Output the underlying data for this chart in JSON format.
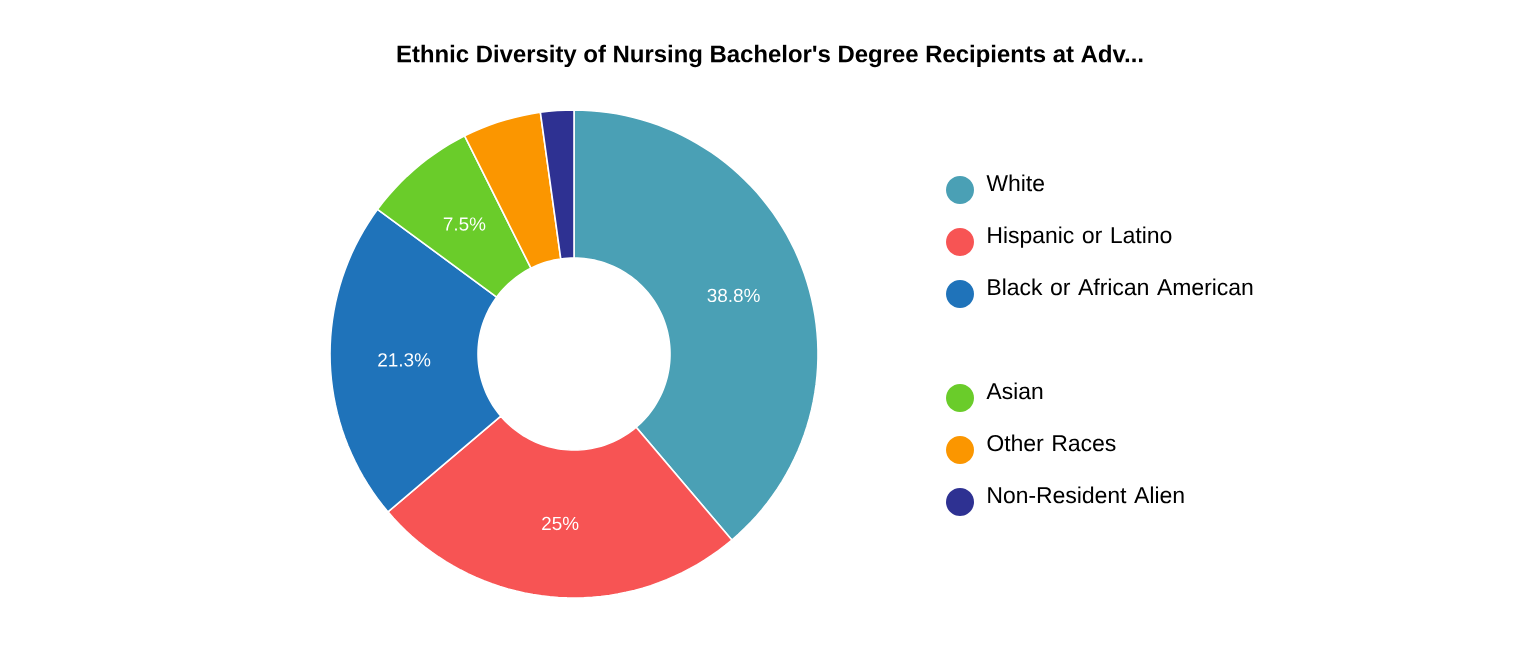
{
  "chart_data": {
    "type": "donut",
    "title": "Ethnic Diversity of Nursing Bachelor's Degree Recipients at Adv...",
    "categories": [
      "White",
      "Hispanic or Latino",
      "Black or African American",
      "Asian",
      "Other Races",
      "Non-Resident Alien"
    ],
    "values": [
      38.8,
      25,
      21.3,
      7.5,
      5.2,
      2.2
    ],
    "value_labels": [
      "38.8%",
      "25%",
      "21.3%",
      "7.5%",
      null,
      null
    ],
    "colors": [
      "#4aa0b5",
      "#f75454",
      "#1f73ba",
      "#6acc2a",
      "#fb9600",
      "#2e3192"
    ],
    "legend": "right"
  }
}
